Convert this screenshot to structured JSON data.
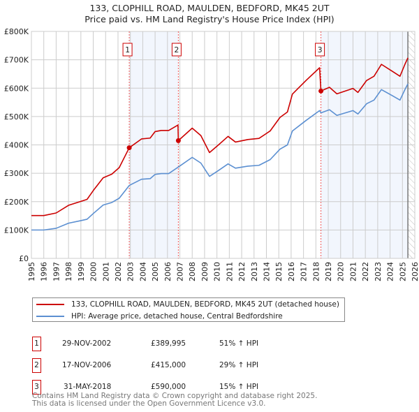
{
  "chart_data": {
    "type": "line",
    "title": "133, CLOPHILL ROAD, MAULDEN, BEDFORD, MK45 2UT",
    "subtitle": "Price paid vs. HM Land Registry's House Price Index (HPI)",
    "xlim": [
      1995,
      2026
    ],
    "ylim": [
      0,
      800000
    ],
    "x_ticks": [
      "1995",
      "1996",
      "1997",
      "1998",
      "1999",
      "2000",
      "2001",
      "2002",
      "2003",
      "2004",
      "2005",
      "2006",
      "2007",
      "2008",
      "2009",
      "2010",
      "2011",
      "2012",
      "2013",
      "2014",
      "2015",
      "2016",
      "2017",
      "2018",
      "2019",
      "2020",
      "2021",
      "2022",
      "2023",
      "2024",
      "2025",
      "2026"
    ],
    "y_ticks": [
      {
        "v": 0,
        "label": "£0"
      },
      {
        "v": 100000,
        "label": "£100K"
      },
      {
        "v": 200000,
        "label": "£200K"
      },
      {
        "v": 300000,
        "label": "£300K"
      },
      {
        "v": 400000,
        "label": "£400K"
      },
      {
        "v": 500000,
        "label": "£500K"
      },
      {
        "v": 600000,
        "label": "£600K"
      },
      {
        "v": 700000,
        "label": "£700K"
      },
      {
        "v": 800000,
        "label": "£800K"
      }
    ],
    "grid": true,
    "forecast_start": 2025.44,
    "shaded_ranges": [
      [
        2002.91,
        2006.88
      ],
      [
        2018.41,
        2025.44
      ]
    ],
    "series": [
      {
        "name": "133, CLOPHILL ROAD, MAULDEN, BEDFORD, MK45 2UT (detached house)",
        "color": "#cc0000",
        "x": [
          1995,
          1996,
          1997,
          1998,
          1999,
          1999.5,
          2000,
          2000.8,
          2001.5,
          2002.1,
          2002.91,
          2003.9,
          2004.6,
          2005,
          2005.5,
          2006.1,
          2006.85,
          2006.88,
          2008,
          2008.7,
          2009.4,
          2010.1,
          2010.9,
          2011.5,
          2012.5,
          2013.4,
          2014.3,
          2015.1,
          2015.7,
          2016.1,
          2017.2,
          2018.3,
          2018.41,
          2019.1,
          2019.7,
          2021,
          2021.4,
          2022.1,
          2022.7,
          2023.3,
          2024.2,
          2024.8,
          2025.2,
          2025.44
        ],
        "y": [
          151000,
          151000,
          160000,
          187000,
          201000,
          208000,
          239000,
          284000,
          297000,
          320000,
          389995,
          421000,
          424000,
          447000,
          451000,
          451000,
          470000,
          415000,
          459000,
          433000,
          373000,
          399000,
          430000,
          410000,
          419000,
          423000,
          449000,
          497000,
          516000,
          579000,
          627000,
          672000,
          590000,
          603000,
          580000,
          599000,
          585000,
          627000,
          642000,
          684000,
          659000,
          642000,
          684000,
          707000
        ]
      },
      {
        "name": "HPI: Average price, detached house, Central Bedfordshire",
        "color": "#5b8fd1",
        "x": [
          1995,
          1996,
          1997,
          1998,
          1999,
          1999.5,
          2000,
          2000.8,
          2001.5,
          2002.1,
          2002.91,
          2003.9,
          2004.6,
          2005,
          2005.5,
          2006.1,
          2006.88,
          2008,
          2008.7,
          2009.4,
          2010.1,
          2010.9,
          2011.5,
          2012.5,
          2013.4,
          2014.3,
          2015.1,
          2015.7,
          2016.1,
          2017.2,
          2018.3,
          2018.41,
          2019.1,
          2019.7,
          2021,
          2021.4,
          2022.1,
          2022.7,
          2023.3,
          2024.2,
          2024.8,
          2025.2,
          2025.44
        ],
        "y": [
          100000,
          100000,
          106000,
          124000,
          133000,
          138000,
          158000,
          188000,
          197000,
          212000,
          257000,
          279000,
          281000,
          296000,
          299000,
          299000,
          322000,
          356000,
          336000,
          289000,
          309000,
          333000,
          318000,
          325000,
          328000,
          348000,
          385000,
          400000,
          449000,
          486000,
          521000,
          513000,
          524000,
          504000,
          521000,
          509000,
          545000,
          558000,
          595000,
          573000,
          558000,
          595000,
          615000
        ]
      }
    ],
    "sales": [
      {
        "num": "1",
        "x": 2002.91,
        "price": 389995
      },
      {
        "num": "2",
        "x": 2006.88,
        "price": 415000
      },
      {
        "num": "3",
        "x": 2018.41,
        "price": 590000
      }
    ]
  },
  "legend": {
    "property": "133, CLOPHILL ROAD, MAULDEN, BEDFORD, MK45 2UT (detached house)",
    "hpi": "HPI: Average price, detached house, Central Bedfordshire"
  },
  "transactions": [
    {
      "num": "1",
      "date": "29-NOV-2002",
      "price": "£389,995",
      "hpi": "51% ↑ HPI"
    },
    {
      "num": "2",
      "date": "17-NOV-2006",
      "price": "£415,000",
      "hpi": "29% ↑ HPI"
    },
    {
      "num": "3",
      "date": "31-MAY-2018",
      "price": "£590,000",
      "hpi": "15% ↑ HPI"
    }
  ],
  "footer": {
    "line1": "Contains HM Land Registry data © Crown copyright and database right 2025.",
    "line2": "This data is licensed under the Open Government Licence v3.0."
  }
}
